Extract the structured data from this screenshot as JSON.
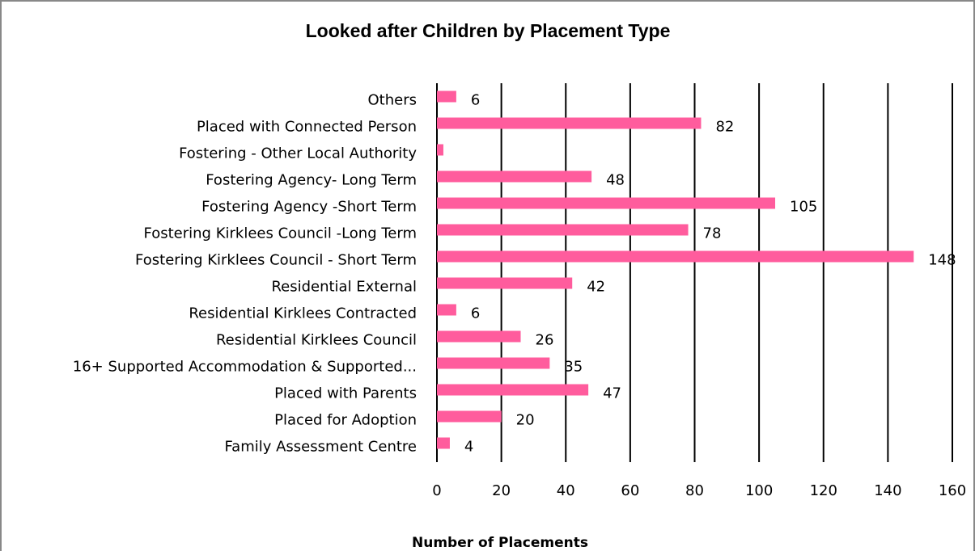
{
  "chart_data": {
    "type": "hbar",
    "title": "Looked after Children by Placement Type",
    "x_label": "Number of Placements",
    "categories": [
      "Others",
      "Placed with Connected Person",
      "Fostering - Other Local Authority",
      "Fostering Agency- Long Term",
      "Fostering Agency -Short Term",
      "Fostering Kirklees Council -Long Term",
      "Fostering Kirklees Council - Short Term",
      "Residential External",
      "Residential Kirklees Contracted ",
      "Residential Kirklees Council",
      "16+ Supported Accommodation & Supported...",
      "Placed with Parents",
      "Placed for Adoption",
      "Family Assessment Centre"
    ],
    "values": [
      6,
      82,
      2,
      48,
      105,
      78,
      148,
      42,
      6,
      26,
      35,
      47,
      20,
      4
    ],
    "value_labels": [
      "6",
      "82",
      null,
      "48",
      "105",
      "78",
      "148",
      "42",
      "6",
      "26",
      "35",
      "47",
      "20",
      "4"
    ],
    "color": "#ff5c9d",
    "xlim": [
      0,
      160
    ],
    "xticks": [
      0,
      20,
      40,
      60,
      80,
      100,
      120,
      140,
      160
    ],
    "grid": true
  }
}
